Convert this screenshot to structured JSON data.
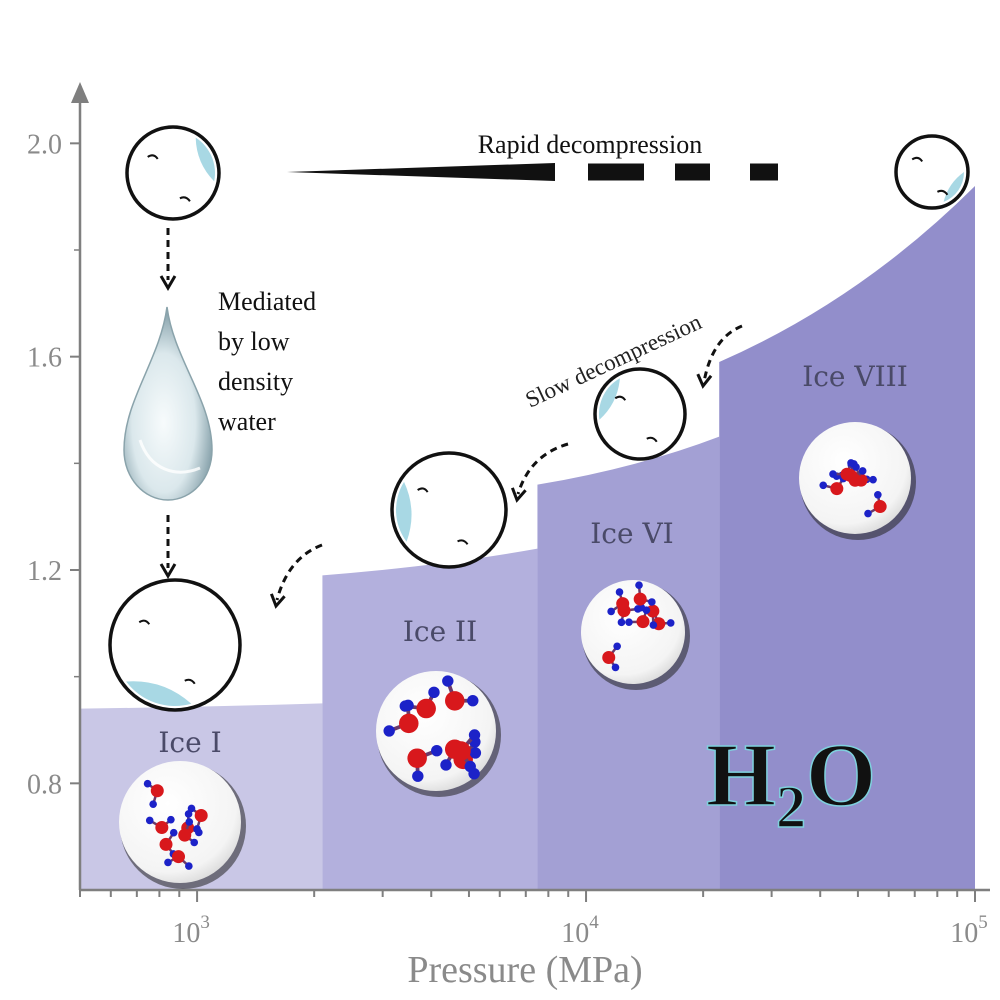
{
  "chart_data": {
    "type": "area",
    "title": "",
    "xlabel": "Pressure (MPa)",
    "ylabel": "",
    "x_scale": "log",
    "xlim": [
      500,
      100000
    ],
    "ylim": [
      0.6,
      2.1
    ],
    "x_ticks": [
      {
        "value": 1000,
        "base": "10",
        "exp": "3"
      },
      {
        "value": 10000,
        "base": "10",
        "exp": "4"
      },
      {
        "value": 100000,
        "base": "10",
        "exp": "5"
      }
    ],
    "y_ticks": [
      {
        "value": 0.8,
        "label": "0.8"
      },
      {
        "value": 1.2,
        "label": "1.2"
      },
      {
        "value": 1.6,
        "label": "1.6"
      },
      {
        "value": 2.0,
        "label": "2.0"
      }
    ],
    "phases": [
      {
        "name": "Ice I",
        "x_start": 500,
        "x_end": 2100,
        "y_start": 0.94,
        "y_end": 0.95,
        "color": "#c9c7e6"
      },
      {
        "name": "Ice II",
        "x_start": 2100,
        "x_end": 7500,
        "y_start": 1.19,
        "y_end": 1.24,
        "color": "#b3b0dd"
      },
      {
        "name": "Ice VI",
        "x_start": 7500,
        "x_end": 22000,
        "y_start": 1.36,
        "y_end": 1.45,
        "color": "#a3a0d4"
      },
      {
        "name": "Ice VIII",
        "x_start": 22000,
        "x_end": 100000,
        "y_start": 1.59,
        "y_end": 1.92,
        "color": "#928ecb"
      }
    ],
    "annotations": {
      "rapid": "Rapid decompression",
      "slow": "Slow decompression",
      "mediated": [
        "Mediated",
        "by low",
        "density",
        "water"
      ]
    },
    "formula": {
      "main": "H",
      "sub": "2",
      "tail": "O"
    }
  },
  "colors": {
    "axis": "#7f7f7f",
    "bubble_highlight": "#a8d8e4",
    "oxygen": "#d8181c",
    "hydrogen": "#1c22c8"
  }
}
